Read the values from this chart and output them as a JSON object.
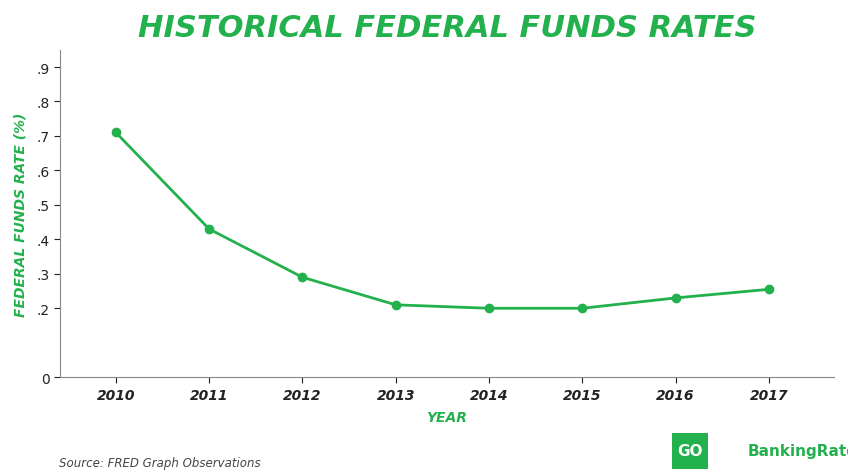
{
  "title": "HISTORICAL FEDERAL FUNDS RATES",
  "xlabel": "YEAR",
  "ylabel": "FEDERAL FUNDS RATE (%)",
  "years": [
    2010,
    2011,
    2012,
    2013,
    2014,
    2015,
    2016,
    2017
  ],
  "values": [
    0.71,
    0.43,
    0.29,
    0.21,
    0.2,
    0.2,
    0.23,
    0.255
  ],
  "ylim": [
    0,
    0.95
  ],
  "yticks": [
    0,
    0.2,
    0.3,
    0.4,
    0.5,
    0.6,
    0.7,
    0.8,
    0.9
  ],
  "ytick_labels": [
    "0",
    ".2",
    ".3",
    ".4",
    ".5",
    ".6",
    ".7",
    ".8",
    ".9"
  ],
  "line_color": "#22b14c",
  "marker_color": "#22b14c",
  "title_color": "#22b14c",
  "axis_label_color": "#22b14c",
  "tick_color": "#222222",
  "background_color": "#ffffff",
  "source_text": "Source: FRED Graph Observations",
  "logo_text_go": "GO",
  "logo_text_banking": "BankingRates",
  "logo_bg_color": "#22b14c",
  "logo_text_color": "#ffffff",
  "title_fontsize": 22,
  "axis_label_fontsize": 10,
  "tick_fontsize": 10,
  "source_fontsize": 8.5,
  "line_width": 2.0,
  "marker_size": 6
}
